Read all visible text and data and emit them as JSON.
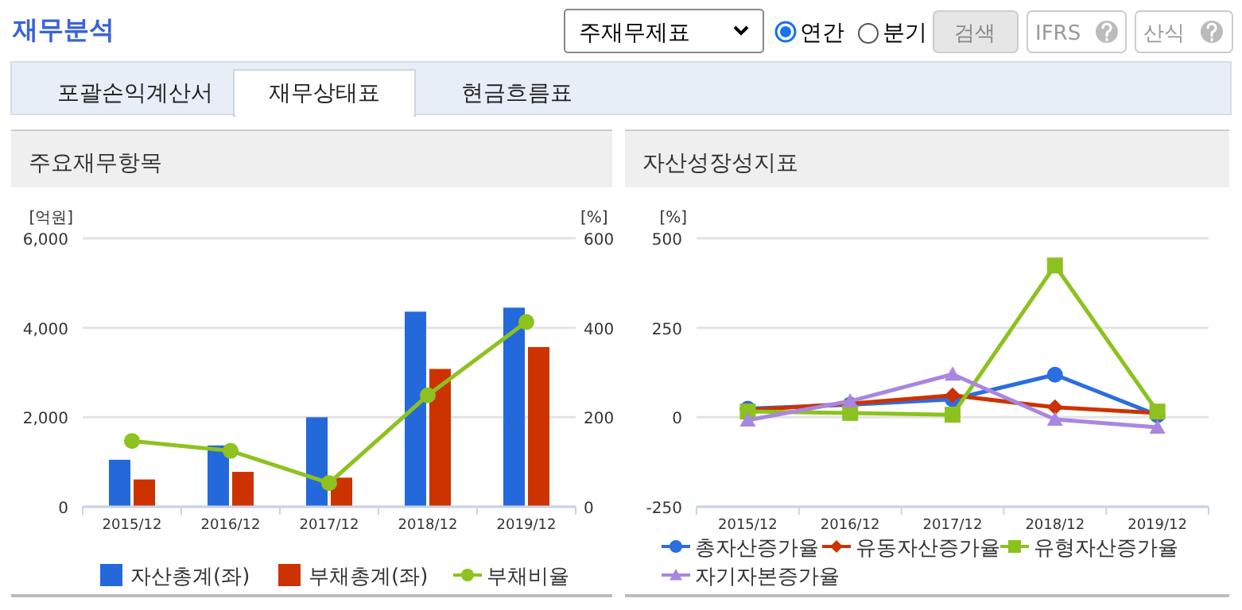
{
  "chart_data": [
    {
      "type": "other",
      "title": "재무분석",
      "annotations": [
        "주재무제표",
        "연간",
        "분기",
        "검색",
        "IFRS",
        "산식",
        "포괄손익계산서",
        "재무상태표",
        "현금흐름표"
      ]
    },
    {
      "type": "bar",
      "title": "주요재무항목",
      "categories": [
        "2015/12",
        "2016/12",
        "2017/12",
        "2018/12",
        "2019/12"
      ],
      "series": [
        {
          "name": "자산총계(좌)",
          "color": "#2469dc",
          "values": [
            1050,
            1370,
            2000,
            4360,
            4450
          ]
        },
        {
          "name": "부채총계(좌)",
          "color": "#cc3300",
          "values": [
            610,
            780,
            650,
            3080,
            3570
          ]
        },
        {
          "name": "부채비율",
          "type": "line",
          "axis": "y2",
          "color": "#8dc21f",
          "values": [
            147,
            125,
            53,
            249,
            413
          ]
        }
      ],
      "ylabel": "[억원]",
      "y2label": "[%]",
      "ylim": [
        0,
        6000
      ],
      "yticks": [
        0,
        {
          "value": 2000,
          "label": "2,000"
        },
        {
          "value": 4000,
          "label": "4,000"
        },
        {
          "value": 6000,
          "label": "6,000"
        }
      ],
      "y2lim": [
        0,
        600
      ],
      "y2ticks": [
        0,
        200,
        400,
        600
      ],
      "grid": "y",
      "legend": "bottom",
      "marker": "circle"
    },
    {
      "type": "line",
      "title": "자산성장성지표",
      "categories": [
        "2015/12",
        "2016/12",
        "2017/12",
        "2018/12",
        "2019/12"
      ],
      "series": [
        {
          "name": "총자산증가율",
          "color": "#2a6ee0",
          "marker": "circle",
          "values": [
            24,
            35,
            50,
            119,
            6
          ]
        },
        {
          "name": "유동자산증가율",
          "color": "#cc3300",
          "marker": "diamond",
          "values": [
            20,
            38,
            61,
            28,
            12
          ]
        },
        {
          "name": "유형자산증가율",
          "color": "#8cc21f",
          "marker": "square",
          "values": [
            16,
            12,
            7,
            424,
            16
          ]
        },
        {
          "name": "자기자본증가율",
          "color": "#a987e0",
          "marker": "triangle",
          "values": [
            -8,
            45,
            120,
            -6,
            -28
          ]
        }
      ],
      "ylabel": "[%]",
      "ylim": [
        -250,
        500
      ],
      "yticks": [
        -250,
        0,
        250,
        500
      ],
      "grid": "y",
      "legend": "bottom"
    }
  ]
}
